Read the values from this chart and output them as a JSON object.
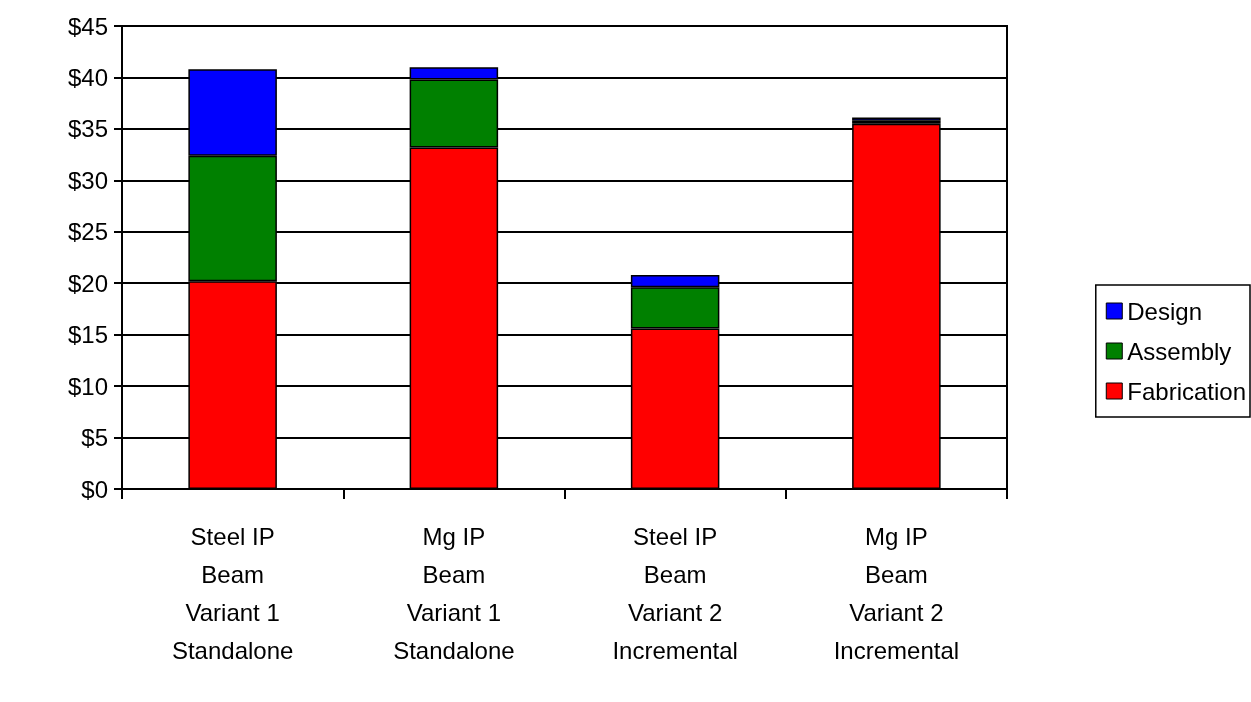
{
  "chart_data": {
    "type": "bar",
    "stacked": true,
    "categories": [
      "Steel IP\nBeam\nVariant 1\nStandalone",
      "Mg IP\nBeam\nVariant 1\nStandalone",
      "Steel IP\nBeam\nVariant 2\nIncremental",
      "Mg IP\nBeam\nVariant 2\nIncremental"
    ],
    "series": [
      {
        "name": "Fabrication",
        "color": "#ff0000",
        "values": [
          20.2,
          33.2,
          15.6,
          35.5
        ]
      },
      {
        "name": "Assembly",
        "color": "#008000",
        "values": [
          12.2,
          6.6,
          4.0,
          0.3
        ]
      },
      {
        "name": "Design",
        "color": "#0000ff",
        "values": [
          8.4,
          1.2,
          1.2,
          0.3
        ]
      }
    ],
    "ylim": [
      0,
      45
    ],
    "yticks": [
      {
        "value": 0,
        "label": "$0"
      },
      {
        "value": 5,
        "label": "$5"
      },
      {
        "value": 10,
        "label": "$10"
      },
      {
        "value": 15,
        "label": "$15"
      },
      {
        "value": 20,
        "label": "$20"
      },
      {
        "value": 25,
        "label": "$25"
      },
      {
        "value": 30,
        "label": "$30"
      },
      {
        "value": 35,
        "label": "$35"
      },
      {
        "value": 40,
        "label": "$40"
      },
      {
        "value": 45,
        "label": "$45"
      }
    ],
    "grid": "y",
    "legend": "right"
  }
}
